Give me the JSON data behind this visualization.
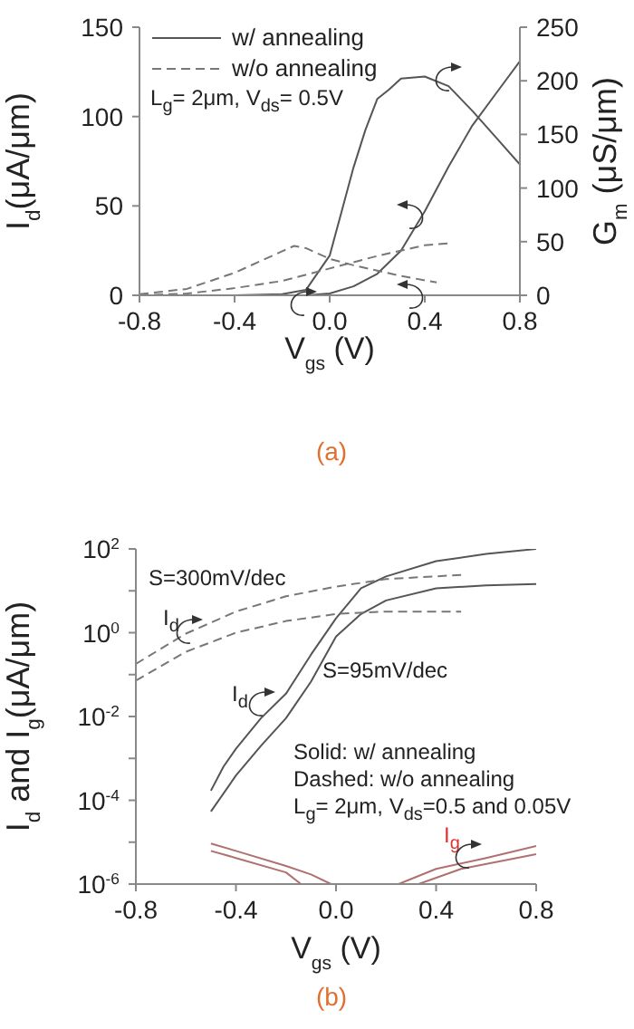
{
  "chart_data": [
    {
      "type": "line",
      "xlabel": "V$_{gs}$ (V)",
      "ylabel": "I$_{d}$(μA/μm)",
      "y2label": "G$_{m}$ (μS/μm)",
      "annotations": [
        "L$_{g}$= 2μm, V$_{ds}$= 0.5V",
        "(a)"
      ],
      "xlim": [
        -0.8,
        0.8
      ],
      "xticks": [
        -0.8,
        -0.4,
        {
          "value": 0,
          "label": "0.0"
        },
        0.4,
        0.8
      ],
      "ylim": [
        0,
        150
      ],
      "yticks": [
        0,
        50,
        100,
        150
      ],
      "y2lim": [
        0,
        250
      ],
      "y2ticks": [
        0,
        50,
        100,
        150,
        200,
        250
      ],
      "legend": "top left",
      "series": [
        {
          "name": "w/ annealing",
          "color": "#555555",
          "line_style": "solid",
          "x": [
            -0.8,
            -0.4,
            -0.2,
            -0.1,
            0,
            0.1,
            0.2,
            0.3,
            0.4,
            0.5,
            0.6,
            0.7,
            0.8
          ],
          "values": [
            0,
            0,
            0,
            0,
            1,
            5,
            12,
            25,
            47,
            72,
            95,
            113,
            131
          ]
        },
        {
          "color": "#555555",
          "line_style": "solid",
          "axis": "y2",
          "x": [
            -0.8,
            -0.4,
            -0.2,
            -0.1,
            0,
            0.05,
            0.1,
            0.15,
            0.2,
            0.25,
            0.3,
            0.4,
            0.5,
            0.6,
            0.7,
            0.8
          ],
          "values": [
            0,
            0,
            1,
            5,
            37,
            78,
            119,
            154,
            183,
            192,
            202,
            204,
            195,
            172,
            147,
            122
          ]
        },
        {
          "name": "w/o annealing",
          "color": "#777777",
          "line_style": "dashed",
          "x": [
            -0.8,
            -0.6,
            -0.4,
            -0.2,
            0,
            0.2,
            0.4,
            0.5
          ],
          "values": [
            0,
            1,
            4,
            8,
            15,
            22,
            28,
            29
          ]
        },
        {
          "color": "#777777",
          "line_style": "dashed",
          "axis": "y2",
          "x": [
            -0.8,
            -0.6,
            -0.4,
            -0.2,
            -0.15,
            -0.1,
            0,
            0.1,
            0.2,
            0.3,
            0.4,
            0.45
          ],
          "values": [
            1,
            6,
            21,
            41,
            46,
            44,
            34,
            28,
            23,
            18,
            14,
            12
          ]
        }
      ]
    },
    {
      "type": "line",
      "xlabel": "V$_{gs}$ (V)",
      "ylabel": "I$_{d}$ and I$_{g}$(μA/μm)",
      "annotations": [
        "S=300mV/dec",
        "I$_{d}$",
        "S=95mV/dec",
        "I$_{d}$",
        "Solid: w/ annealing",
        "Dashed: w/o annealing",
        "L$_{g}$= 2μm, V$_{ds}$=0.5 and 0.05V",
        "I$_{g}$",
        "(b)"
      ],
      "log": true,
      "xlim": [
        -0.8,
        0.8
      ],
      "xticks": [
        -0.8,
        -0.4,
        {
          "value": 0,
          "label": "0.0"
        },
        0.4,
        0.8
      ],
      "ylim": [
        1e-06,
        100
      ],
      "yticks": [
        {
          "value": 1e-06,
          "label": "10$^{-6}$"
        },
        {
          "value": 1e-05,
          "label": null
        },
        {
          "value": 0.0001,
          "label": "10$^{-4}$"
        },
        {
          "value": 0.001,
          "label": null
        },
        {
          "value": 0.01,
          "label": "10$^{-2}$"
        },
        {
          "value": 0.1,
          "label": null
        },
        {
          "value": 1,
          "label": "10$^{0}$"
        },
        {
          "value": 10,
          "label": null
        },
        {
          "value": 100,
          "label": "10$^{2}$"
        }
      ],
      "series": [
        {
          "color": "#555555",
          "line_style": "solid",
          "x": [
            -0.5,
            -0.45,
            -0.4,
            -0.3,
            -0.2,
            -0.1,
            0,
            0.1,
            0.2,
            0.4,
            0.6,
            0.8
          ],
          "values": [
            0.00017,
            0.00063,
            0.0017,
            0.0091,
            0.035,
            0.3,
            2.2,
            11.5,
            22,
            51,
            76,
            100
          ]
        },
        {
          "color": "#555555",
          "line_style": "solid",
          "x": [
            -0.5,
            -0.4,
            -0.3,
            -0.2,
            -0.1,
            0,
            0.1,
            0.2,
            0.4,
            0.6,
            0.8
          ],
          "values": [
            5.4e-05,
            0.00039,
            0.002,
            0.0091,
            0.068,
            0.81,
            2.8,
            5.9,
            11.5,
            13.5,
            14.5
          ]
        },
        {
          "color": "#777777",
          "line_style": "dashed",
          "x": [
            -0.8,
            -0.6,
            -0.4,
            -0.2,
            0,
            0.2,
            0.5
          ],
          "values": [
            0.18,
            0.95,
            3.2,
            7.4,
            12.6,
            19,
            24
          ]
        },
        {
          "color": "#777777",
          "line_style": "dashed",
          "x": [
            -0.8,
            -0.6,
            -0.4,
            -0.2,
            0,
            0.2,
            0.5
          ],
          "values": [
            0.072,
            0.35,
            1,
            1.9,
            2.8,
            3.2,
            3.2
          ]
        },
        {
          "color": "#b07070",
          "line_style": "solid",
          "x": [
            -0.5,
            -0.4,
            -0.2,
            -0.1,
            -0.02
          ],
          "values": [
            9.3e-06,
            6.2e-06,
            2.7e-06,
            1.7e-06,
            1e-06
          ]
        },
        {
          "color": "#b07070",
          "line_style": "solid",
          "x": [
            -0.5,
            -0.4,
            -0.2,
            -0.14
          ],
          "values": [
            6.2e-06,
            4.2e-06,
            1.9e-06,
            1e-06
          ]
        },
        {
          "color": "#b07070",
          "line_style": "solid",
          "x": [
            0.25,
            0.4,
            0.6,
            0.8
          ],
          "values": [
            1e-06,
            2.3e-06,
            4.2e-06,
            8.1e-06
          ]
        },
        {
          "color": "#b07070",
          "line_style": "solid",
          "x": [
            0.33,
            0.5,
            0.8
          ],
          "values": [
            1e-06,
            2.3e-06,
            5.2e-06
          ]
        }
      ]
    }
  ]
}
